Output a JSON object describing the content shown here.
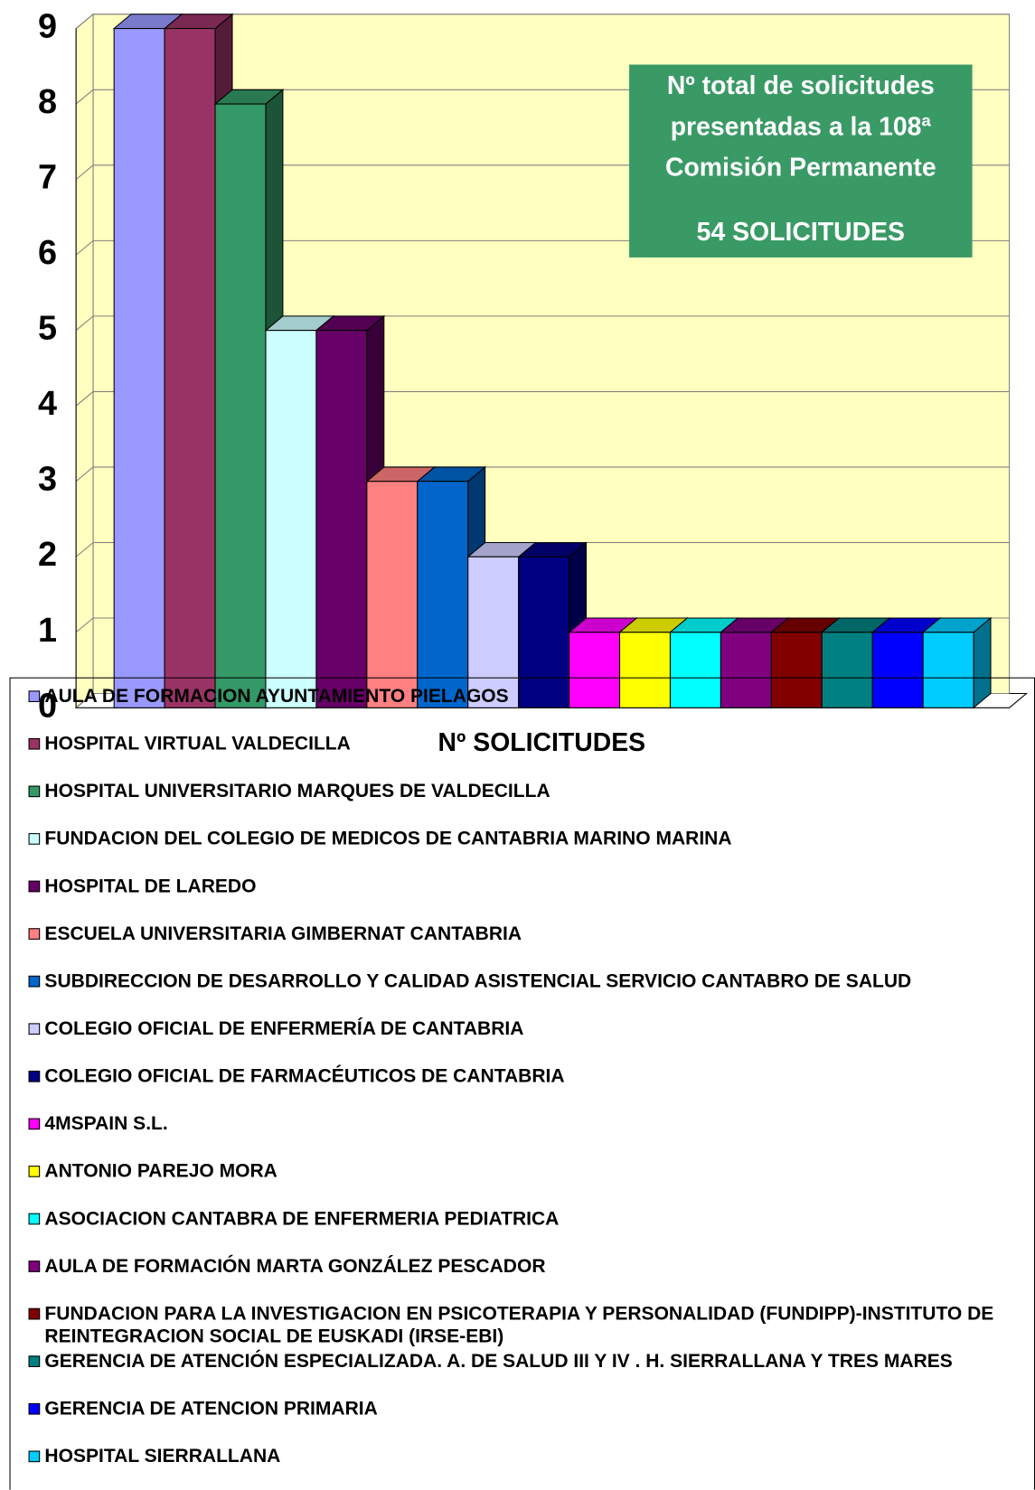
{
  "chart_data": {
    "type": "bar",
    "xlabel": "Nº SOLICITUDES",
    "annotation": {
      "text": "Nº total de solicitudes presentadas a la 108ª Comisión Permanente",
      "total": "54 SOLICITUDES"
    },
    "ylim": [
      0,
      9
    ],
    "yticks": [
      0,
      1,
      2,
      3,
      4,
      5,
      6,
      7,
      8,
      9
    ],
    "grid": true,
    "series": [
      {
        "name": "AULA DE FORMACION AYUNTAMIENTO PIELAGOS",
        "color": "#9999ff",
        "values": [
          9
        ]
      },
      {
        "name": "HOSPITAL VIRTUAL VALDECILLA",
        "color": "#993366",
        "values": [
          9
        ]
      },
      {
        "name": "HOSPITAL UNIVERSITARIO MARQUES DE VALDECILLA",
        "color": "#339966",
        "values": [
          8
        ]
      },
      {
        "name": "FUNDACION DEL COLEGIO DE MEDICOS DE CANTABRIA MARINO MARINA",
        "color": "#ccffff",
        "values": [
          5
        ]
      },
      {
        "name": "HOSPITAL DE LAREDO",
        "color": "#660066",
        "values": [
          5
        ]
      },
      {
        "name": "ESCUELA UNIVERSITARIA GIMBERNAT CANTABRIA",
        "color": "#ff8080",
        "values": [
          3
        ]
      },
      {
        "name": "SUBDIRECCION DE DESARROLLO Y CALIDAD ASISTENCIAL SERVICIO CANTABRO DE SALUD",
        "color": "#0066cc",
        "values": [
          3
        ]
      },
      {
        "name": "COLEGIO OFICIAL DE ENFERMERÍA DE CANTABRIA",
        "color": "#ccccff",
        "values": [
          2
        ]
      },
      {
        "name": "COLEGIO OFICIAL DE FARMACÉUTICOS DE CANTABRIA",
        "color": "#000080",
        "values": [
          2
        ]
      },
      {
        "name": "4MSPAIN S.L.",
        "color": "#ff00ff",
        "values": [
          1
        ]
      },
      {
        "name": "ANTONIO PAREJO MORA",
        "color": "#ffff00",
        "values": [
          1
        ]
      },
      {
        "name": "ASOCIACION CANTABRA DE ENFERMERIA PEDIATRICA",
        "color": "#00ffff",
        "values": [
          1
        ]
      },
      {
        "name": "AULA DE FORMACIÓN MARTA GONZÁLEZ PESCADOR",
        "color": "#800080",
        "values": [
          1
        ]
      },
      {
        "name": "FUNDACION PARA LA INVESTIGACION EN PSICOTERAPIA Y PERSONALIDAD (FUNDIPP)-INSTITUTO DE REINTEGRACION SOCIAL DE EUSKADI (IRSE-EBI)",
        "color": "#800000",
        "values": [
          1
        ]
      },
      {
        "name": "GERENCIA DE ATENCIÓN ESPECIALIZADA. A. DE SALUD III Y IV . H. SIERRALLANA Y TRES MARES",
        "color": "#008080",
        "values": [
          1
        ]
      },
      {
        "name": "GERENCIA DE ATENCION PRIMARIA",
        "color": "#0000ff",
        "values": [
          1
        ]
      },
      {
        "name": "HOSPITAL SIERRALLANA",
        "color": "#00ccff",
        "values": [
          1
        ]
      }
    ]
  }
}
